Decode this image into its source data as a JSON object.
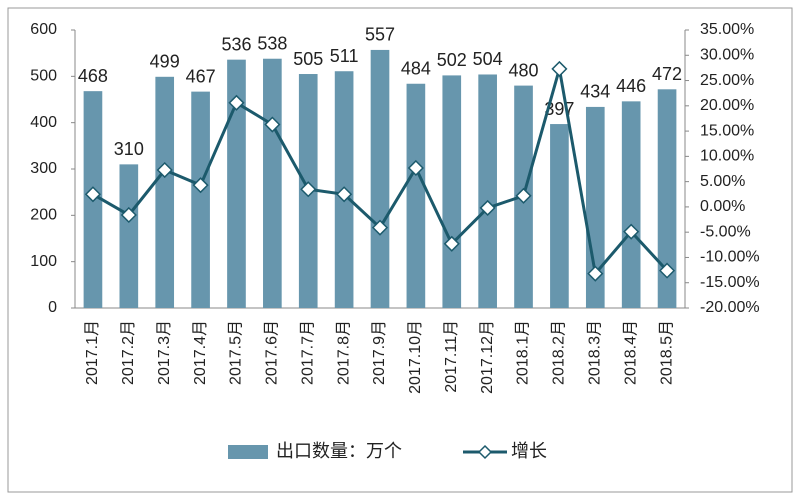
{
  "chart_data": {
    "type": "bar-line",
    "categories": [
      "2017.1月",
      "2017.2月",
      "2017.3月",
      "2017.4月",
      "2017.5月",
      "2017.6月",
      "2017.7月",
      "2017.8月",
      "2017.9月",
      "2017.10月",
      "2017.11月",
      "2017.12月",
      "2018.1月",
      "2018.2月",
      "2018.3月",
      "2018.4月",
      "2018.5月"
    ],
    "series": [
      {
        "name": "出口数量：万个",
        "color": "#6796ad",
        "type": "bar",
        "values": [
          468,
          310,
          499,
          467,
          536,
          538,
          505,
          511,
          557,
          484,
          502,
          504,
          480,
          397,
          434,
          446,
          472
        ]
      },
      {
        "name": "增长",
        "color": "#1c5a6c",
        "type": "line",
        "axis": "y2",
        "values": [
          2.5,
          -1.6,
          7.3,
          4.3,
          20.6,
          16.3,
          3.5,
          2.5,
          -4.1,
          7.7,
          -7.3,
          -0.2,
          2.2,
          27.3,
          -13.2,
          -4.9,
          -12.6
        ]
      }
    ],
    "ylim": [
      0,
      600
    ],
    "yticks": [
      0,
      100,
      200,
      300,
      400,
      500,
      600
    ],
    "y2lim": [
      -20,
      35
    ],
    "y2ticks": [
      {
        "value": -20,
        "label": "-20.00%"
      },
      {
        "value": -15,
        "label": "-15.00%"
      },
      {
        "value": -10,
        "label": "-10.00%"
      },
      {
        "value": -5,
        "label": "-5.00%"
      },
      {
        "value": 0,
        "label": "0.00%"
      },
      {
        "value": 5,
        "label": "5.00%"
      },
      {
        "value": 10,
        "label": "10.00%"
      },
      {
        "value": 15,
        "label": "15.00%"
      },
      {
        "value": 20,
        "label": "20.00%"
      },
      {
        "value": 25,
        "label": "25.00%"
      },
      {
        "value": 30,
        "label": "30.00%"
      },
      {
        "value": 35,
        "label": "35.00%"
      }
    ],
    "legend": "bottom"
  }
}
